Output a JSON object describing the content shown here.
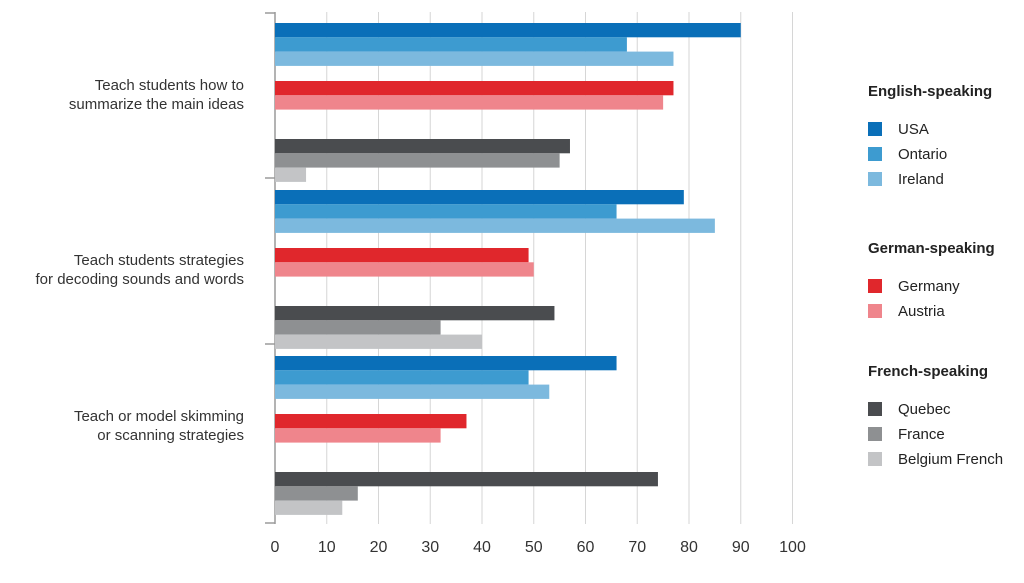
{
  "chart_data": {
    "type": "bar",
    "orientation": "horizontal",
    "categories": [
      [
        "Teach students how to",
        "summarize the main ideas"
      ],
      [
        "Teach students strategies",
        "for decoding sounds and words"
      ],
      [
        "Teach or model skimming",
        "or scanning strategies"
      ]
    ],
    "xlim": [
      0,
      100
    ],
    "xticks": [
      "0",
      "10",
      "20",
      "30",
      "40",
      "50",
      "60",
      "70",
      "80",
      "90",
      "100"
    ],
    "grid": true,
    "legend_position": "right",
    "legend_groups": [
      {
        "title": "English-speaking",
        "series": [
          "USA",
          "Ontario",
          "Ireland"
        ]
      },
      {
        "title": "German-speaking",
        "series": [
          "Germany",
          "Austria"
        ]
      },
      {
        "title": "French-speaking",
        "series": [
          "Quebec",
          "France",
          "Belgium French"
        ]
      }
    ],
    "series": [
      {
        "name": "USA",
        "group": "English-speaking",
        "color": "#0a6fb8",
        "values": [
          90,
          79,
          66
        ]
      },
      {
        "name": "Ontario",
        "group": "English-speaking",
        "color": "#3d9bd0",
        "values": [
          68,
          66,
          49
        ]
      },
      {
        "name": "Ireland",
        "group": "English-speaking",
        "color": "#7cb9de",
        "values": [
          77,
          85,
          53
        ]
      },
      {
        "name": "Germany",
        "group": "German-speaking",
        "color": "#e0272c",
        "values": [
          77,
          49,
          37
        ]
      },
      {
        "name": "Austria",
        "group": "German-speaking",
        "color": "#ef858c",
        "values": [
          75,
          50,
          32
        ]
      },
      {
        "name": "Quebec",
        "group": "French-speaking",
        "color": "#4a4c4f",
        "values": [
          57,
          54,
          74
        ]
      },
      {
        "name": "France",
        "group": "French-speaking",
        "color": "#8e9092",
        "values": [
          55,
          32,
          16
        ]
      },
      {
        "name": "Belgium French",
        "group": "French-speaking",
        "color": "#c3c4c6",
        "values": [
          6,
          40,
          13
        ]
      }
    ]
  }
}
